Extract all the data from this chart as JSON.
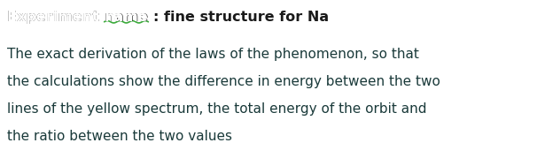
{
  "background_color": "#ffffff",
  "title_prefix": "Experiment name : ",
  "title_bold": "fine structure for Na",
  "body_lines": [
    "The exact derivation of the laws of the phenomenon, so that",
    "the calculations show the difference in energy between the two",
    "lines of the yellow spectrum, the total energy of the orbit and",
    "the ratio between the two values"
  ],
  "title_color": "#1a1a1a",
  "body_color": "#1a3a3a",
  "underline_color": "#3aaa3a",
  "title_fontsize": 11.5,
  "body_fontsize": 11.0,
  "fig_width": 6.06,
  "fig_height": 1.79,
  "dpi": 100
}
